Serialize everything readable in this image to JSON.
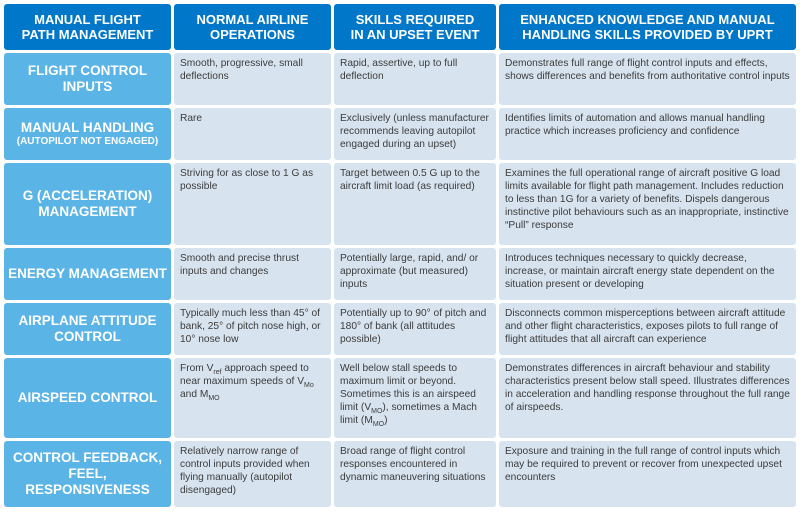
{
  "headers": [
    {
      "line1": "MANUAL FLIGHT",
      "line2": "PATH MANAGEMENT"
    },
    {
      "line1": "NORMAL AIRLINE",
      "line2": "OPERATIONS"
    },
    {
      "line1": "SKILLS REQUIRED",
      "line2": "IN AN UPSET EVENT"
    },
    {
      "line1": "ENHANCED KNOWLEDGE AND MANUAL",
      "line2": "HANDLING SKILLS PROVIDED BY UPRT"
    }
  ],
  "rows": [
    {
      "head": "FLIGHT CONTROL INPUTS",
      "normal": "Smooth, progressive, small deflections",
      "upset": "Rapid, assertive, up to full deflection",
      "uprt": "Demonstrates full range of flight control inputs and effects, shows differences and benefits from authoritative control inputs"
    },
    {
      "head": "MANUAL HANDLING",
      "head_sub": "(AUTOPILOT NOT ENGAGED)",
      "normal": "Rare",
      "upset": "Exclusively (unless manufacturer recommends leaving autopilot engaged during an upset)",
      "uprt": "Identifies limits of automation and allows manual handling practice which increases proficiency and confidence"
    },
    {
      "head": "G (ACCELERATION) MANAGEMENT",
      "normal": "Striving for as close to 1 G as possible",
      "upset": "Target between 0.5 G up to the aircraft limit load (as required)",
      "uprt": "Examines the full operational range of aircraft positive G load limits available for flight path management. Includes reduction to less than 1G for a variety of benefits. Dispels dangerous instinctive pilot behaviours such as an inappropriate, instinctive “Pull” response"
    },
    {
      "head": "ENERGY MANAGEMENT",
      "normal": "Smooth and precise thrust inputs and changes",
      "upset": "Potentially large, rapid, and/ or approximate (but measured) inputs",
      "uprt": "Introduces techniques necessary to quickly decrease, increase, or maintain aircraft energy state dependent on the situation present or developing"
    },
    {
      "head": "AIRPLANE ATTITUDE CONTROL",
      "normal": "Typically much less than 45° of bank, 25° of pitch nose high, or 10° nose low",
      "upset": "Potentially up to 90° of pitch and 180° of bank (all attitudes possible)",
      "uprt": "Disconnects common misperceptions between aircraft attitude and other flight characteristics, exposes pilots to full range of flight attitudes that all aircraft can experience"
    },
    {
      "head": "AIRSPEED CONTROL",
      "normal_parts": [
        "From V",
        "ref",
        " approach speed to near maximum speeds of V",
        "Mo",
        " and M",
        "MO"
      ],
      "upset_parts": [
        "Well below stall speeds to maximum limit or beyond. Sometimes this is an airspeed limit (V",
        "MO",
        "), sometimes a Mach limit (M",
        "MO",
        ")"
      ],
      "uprt": "Demonstrates differences in aircraft behaviour and stability characteristics present below stall speed. Illustrates differences in acceleration and handling response throughout the full range of airspeeds."
    },
    {
      "head": "CONTROL FEEDBACK, FEEL, RESPONSIVENESS",
      "normal": "Relatively narrow range of control inputs provided when flying manually (autopilot disengaged)",
      "upset": "Broad range of flight control responses encountered in dynamic maneuvering situations",
      "uprt": "Exposure and training in the full range of control inputs which may be required to prevent or recover from unexpected upset encounters"
    }
  ]
}
